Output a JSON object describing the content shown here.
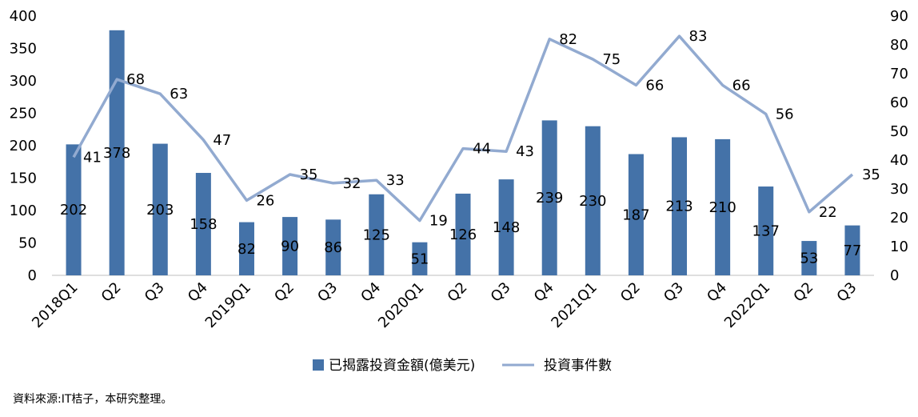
{
  "chart_data": {
    "type": "bar+line",
    "categories": [
      "2018Q1",
      "Q2",
      "Q3",
      "Q4",
      "2019Q1",
      "Q2",
      "Q3",
      "Q4",
      "2020Q1",
      "Q2",
      "Q3",
      "Q4",
      "2021Q1",
      "Q2",
      "Q3",
      "Q4",
      "2022Q1",
      "Q2",
      "Q3"
    ],
    "series": [
      {
        "name": "已揭露投資金額(億美元)",
        "type": "bar",
        "axis": "left",
        "color": "#4472a8",
        "values": [
          202,
          378,
          203,
          158,
          82,
          90,
          86,
          125,
          51,
          126,
          148,
          239,
          230,
          187,
          213,
          210,
          137,
          53,
          77
        ]
      },
      {
        "name": "投資事件數",
        "type": "line",
        "axis": "right",
        "color": "#92aad0",
        "values": [
          41,
          68,
          63,
          47,
          26,
          35,
          32,
          33,
          19,
          44,
          43,
          82,
          75,
          66,
          83,
          66,
          56,
          22,
          35
        ]
      }
    ],
    "y_left": {
      "min": 0,
      "max": 400,
      "step": 50
    },
    "y_right": {
      "min": 0,
      "max": 90,
      "step": 10
    },
    "legend": "bottom-center",
    "grid": false
  },
  "footer": {
    "source": "資料來源:IT桔子，本研究整理。"
  }
}
